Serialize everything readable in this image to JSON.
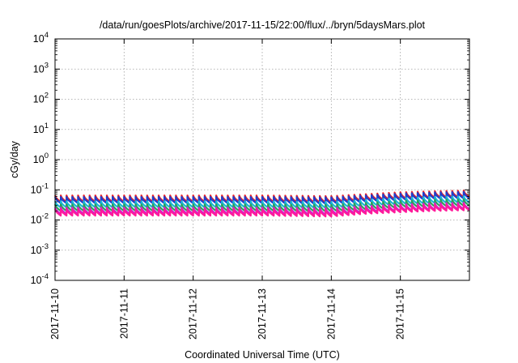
{
  "chart_data": {
    "type": "line",
    "title": "/data/run/goesPlots/archive/2017-11-15/22:00/flux/../bryn/5daysMars.plot",
    "xlabel": "Coordinated Universal Time (UTC)",
    "ylabel": "cGy/day",
    "yscale": "log",
    "ylim": [
      0.0001,
      10000
    ],
    "y_ticks": [
      {
        "value": 0.0001,
        "base": "10",
        "exp": "-4"
      },
      {
        "value": 0.001,
        "base": "10",
        "exp": "-3"
      },
      {
        "value": 0.01,
        "base": "10",
        "exp": "-2"
      },
      {
        "value": 0.1,
        "base": "10",
        "exp": "-1"
      },
      {
        "value": 1,
        "base": "10",
        "exp": "0"
      },
      {
        "value": 10,
        "base": "10",
        "exp": "1"
      },
      {
        "value": 100,
        "base": "10",
        "exp": "2"
      },
      {
        "value": 1000,
        "base": "10",
        "exp": "3"
      },
      {
        "value": 10000,
        "base": "10",
        "exp": "4"
      }
    ],
    "xlim": [
      "2017-11-10",
      "2017-11-16"
    ],
    "x_ticks": [
      "2017-11-10",
      "2017-11-11",
      "2017-11-12",
      "2017-11-13",
      "2017-11-14",
      "2017-11-15"
    ],
    "grid": true,
    "legend": "none",
    "sawtooth_cycles_per_day": 12,
    "series": [
      {
        "color": "#e8202a",
        "peak": [
          0.065,
          0.065,
          0.065,
          0.065,
          0.062,
          0.072,
          0.083,
          0.09,
          0.095
        ],
        "trough": [
          0.04,
          0.04,
          0.04,
          0.04,
          0.038,
          0.045,
          0.05,
          0.055,
          0.058
        ],
        "days": [
          0,
          1,
          2,
          3,
          4,
          4.5,
          5,
          5.5,
          6
        ]
      },
      {
        "color": "#1f3fcc",
        "peak": [
          0.058,
          0.058,
          0.058,
          0.058,
          0.056,
          0.065,
          0.075,
          0.082,
          0.086
        ],
        "trough": [
          0.036,
          0.036,
          0.036,
          0.036,
          0.034,
          0.04,
          0.045,
          0.05,
          0.052
        ],
        "days": [
          0,
          1,
          2,
          3,
          4,
          4.5,
          5,
          5.5,
          6
        ]
      },
      {
        "color": "#18b8d8",
        "peak": [
          0.042,
          0.042,
          0.042,
          0.042,
          0.04,
          0.047,
          0.054,
          0.059,
          0.062
        ],
        "trough": [
          0.026,
          0.026,
          0.026,
          0.026,
          0.025,
          0.029,
          0.033,
          0.036,
          0.038
        ],
        "days": [
          0,
          1,
          2,
          3,
          4,
          4.5,
          5,
          5.5,
          6
        ]
      },
      {
        "color": "#2ca05a",
        "peak": [
          0.033,
          0.033,
          0.033,
          0.033,
          0.032,
          0.037,
          0.043,
          0.047,
          0.049
        ],
        "trough": [
          0.02,
          0.02,
          0.02,
          0.02,
          0.019,
          0.022,
          0.026,
          0.028,
          0.03
        ],
        "days": [
          0,
          1,
          2,
          3,
          4,
          4.5,
          5,
          5.5,
          6
        ]
      },
      {
        "color": "#d020d0",
        "peak": [
          0.026,
          0.026,
          0.026,
          0.026,
          0.025,
          0.029,
          0.033,
          0.036,
          0.038
        ],
        "trough": [
          0.016,
          0.016,
          0.016,
          0.016,
          0.015,
          0.018,
          0.02,
          0.022,
          0.023
        ],
        "days": [
          0,
          1,
          2,
          3,
          4,
          4.5,
          5,
          5.5,
          6
        ]
      },
      {
        "color": "#ff1a9a",
        "peak": [
          0.023,
          0.023,
          0.023,
          0.023,
          0.022,
          0.026,
          0.03,
          0.032,
          0.034
        ],
        "trough": [
          0.014,
          0.014,
          0.014,
          0.014,
          0.013,
          0.016,
          0.018,
          0.02,
          0.021
        ],
        "days": [
          0,
          1,
          2,
          3,
          4,
          4.5,
          5,
          5.5,
          6
        ]
      }
    ]
  }
}
